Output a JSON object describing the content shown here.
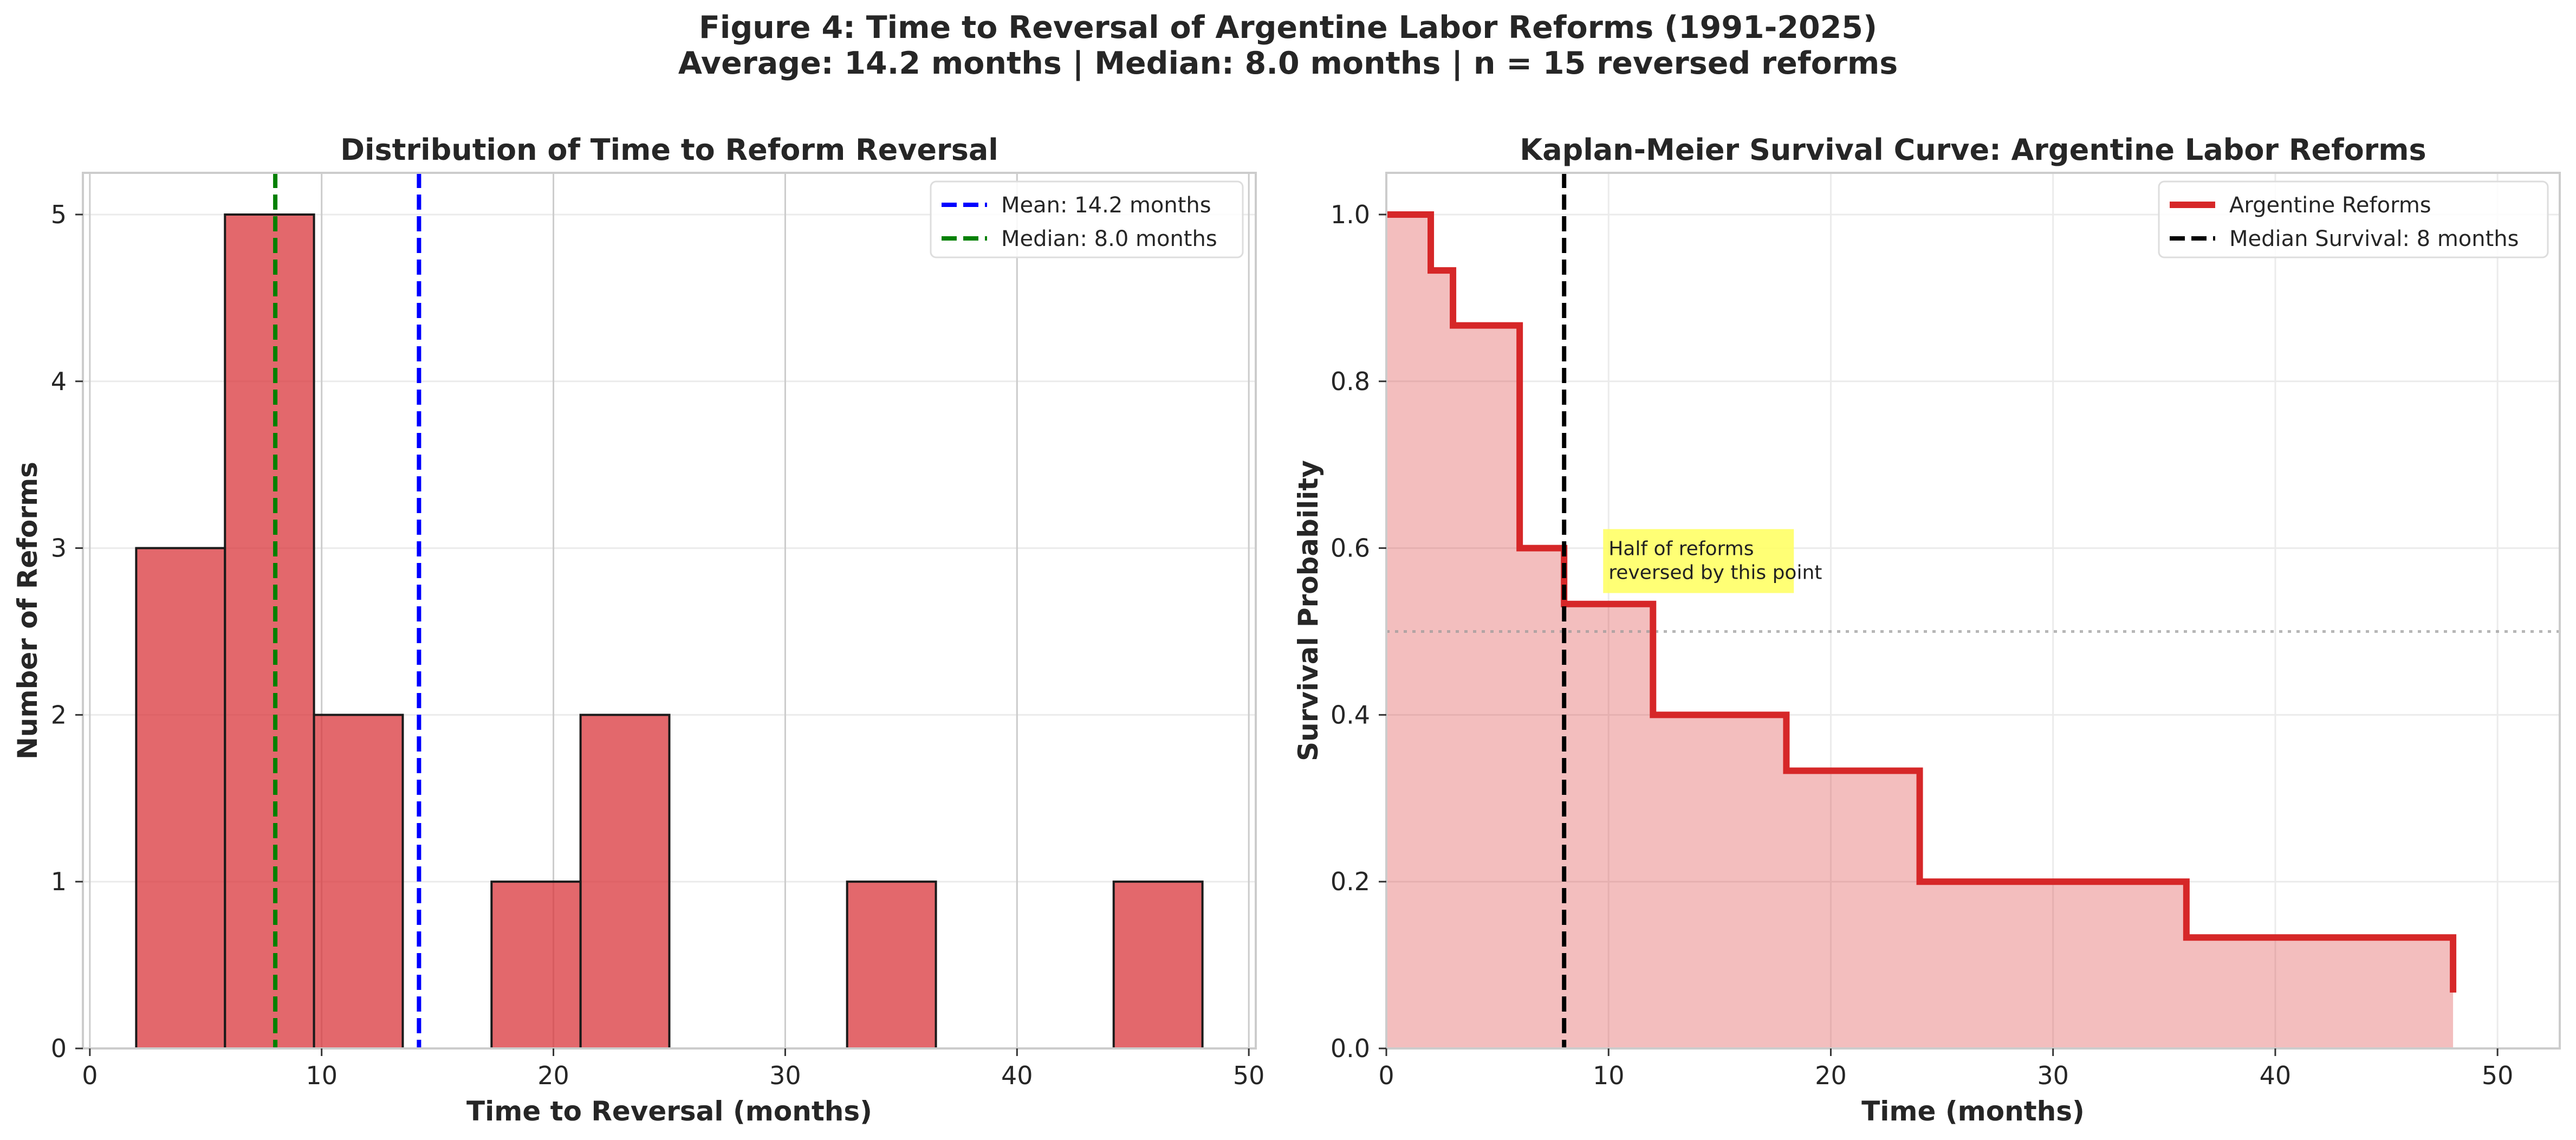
{
  "figure": {
    "title_line1": "Figure 4: Time to Reversal of Argentine Labor Reforms (1991-2025)",
    "title_line2": "Average: 14.2 months | Median: 8.0 months | n = 15 reversed reforms"
  },
  "chart_data": [
    {
      "type": "bar",
      "title": "Distribution of Time to Reform Reversal",
      "xlabel": "Time to Reversal (months)",
      "ylabel": "Number of Reforms",
      "xlim": [
        -0.3,
        50.3
      ],
      "ylim": [
        0,
        5.25
      ],
      "xticks": [
        0,
        10,
        20,
        30,
        40,
        50
      ],
      "yticks": [
        0,
        1,
        2,
        3,
        4,
        5
      ],
      "grid": true,
      "legend_position": "top-right",
      "bar_color": "#d9353b",
      "bins": [
        {
          "start": 2.0,
          "end": 5.83,
          "count": 3
        },
        {
          "start": 5.83,
          "end": 9.67,
          "count": 5
        },
        {
          "start": 9.67,
          "end": 13.5,
          "count": 2
        },
        {
          "start": 13.5,
          "end": 17.33,
          "count": 0
        },
        {
          "start": 17.33,
          "end": 21.17,
          "count": 1
        },
        {
          "start": 21.17,
          "end": 25.0,
          "count": 2
        },
        {
          "start": 25.0,
          "end": 28.83,
          "count": 0
        },
        {
          "start": 28.83,
          "end": 32.67,
          "count": 0
        },
        {
          "start": 32.67,
          "end": 36.5,
          "count": 1
        },
        {
          "start": 36.5,
          "end": 40.33,
          "count": 0
        },
        {
          "start": 40.33,
          "end": 44.17,
          "count": 0
        },
        {
          "start": 44.17,
          "end": 48.0,
          "count": 1
        }
      ],
      "reference_lines": [
        {
          "label": "Mean: 14.2 months",
          "x": 14.2,
          "color": "#0000ff"
        },
        {
          "label": "Median: 8.0 months",
          "x": 8.0,
          "color": "#008000"
        }
      ]
    },
    {
      "type": "line",
      "title": "Kaplan-Meier Survival Curve: Argentine Labor Reforms",
      "xlabel": "Time (months)",
      "ylabel": "Survival Probability",
      "xlim": [
        0,
        52.8
      ],
      "ylim": [
        0,
        1.05
      ],
      "xticks": [
        0,
        10,
        20,
        30,
        40,
        50
      ],
      "yticks": [
        "0.0",
        "0.2",
        "0.4",
        "0.6",
        "0.8",
        "1.0"
      ],
      "grid": true,
      "legend_position": "top-right",
      "series": [
        {
          "name": "Argentine Reforms",
          "color": "#d62728",
          "step": "post",
          "x": [
            0,
            2,
            3,
            6,
            8,
            12,
            18,
            24,
            36,
            48
          ],
          "y": [
            1.0,
            0.933,
            0.867,
            0.6,
            0.533,
            0.4,
            0.333,
            0.2,
            0.133,
            0.067
          ]
        }
      ],
      "reference_lines": [
        {
          "label": "Median Survival: 8 months",
          "x": 8,
          "color": "#000000"
        },
        {
          "y": 0.5,
          "color": "#999999"
        }
      ],
      "annotation": {
        "text_line1": "Half of reforms",
        "text_line2": "reversed by this point",
        "x": 10,
        "y": 0.55,
        "background": "#ffff66"
      }
    }
  ]
}
